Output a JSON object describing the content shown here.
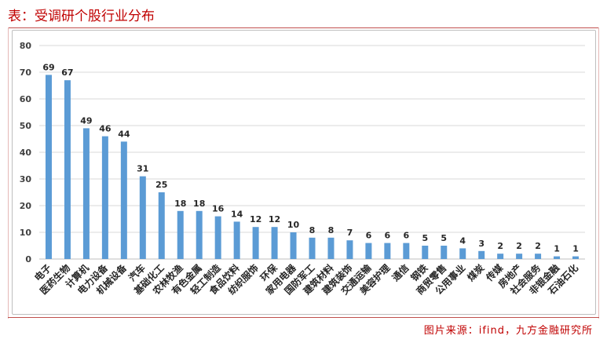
{
  "header": {
    "title": "表：受调研个股行业分布"
  },
  "footer": {
    "source": "图片来源：ifind，九方金融研究所"
  },
  "colors": {
    "bar": "#5b9bd5",
    "title": "#c00000",
    "grid": "#d9d9d9"
  },
  "chart_data": {
    "type": "bar",
    "categories": [
      "电子",
      "医药生物",
      "计算机",
      "电力设备",
      "机械设备",
      "汽车",
      "基础化工",
      "农林牧渔",
      "有色金属",
      "轻工制造",
      "食品饮料",
      "纺织服饰",
      "环保",
      "家用电器",
      "国防军工",
      "建筑材料",
      "建筑装饰",
      "交通运输",
      "美容护理",
      "通信",
      "钢铁",
      "商贸零售",
      "公用事业",
      "煤炭",
      "传媒",
      "房地产",
      "社会服务",
      "非银金融",
      "石油石化"
    ],
    "values": [
      69,
      67,
      49,
      46,
      44,
      31,
      25,
      18,
      18,
      16,
      14,
      12,
      12,
      10,
      8,
      8,
      7,
      6,
      6,
      6,
      5,
      5,
      4,
      3,
      2,
      2,
      2,
      1,
      1
    ],
    "ylim": [
      0,
      80
    ],
    "yticks": [
      0,
      10,
      20,
      30,
      40,
      50,
      60,
      70,
      80
    ],
    "grid": true,
    "legend": "none"
  }
}
